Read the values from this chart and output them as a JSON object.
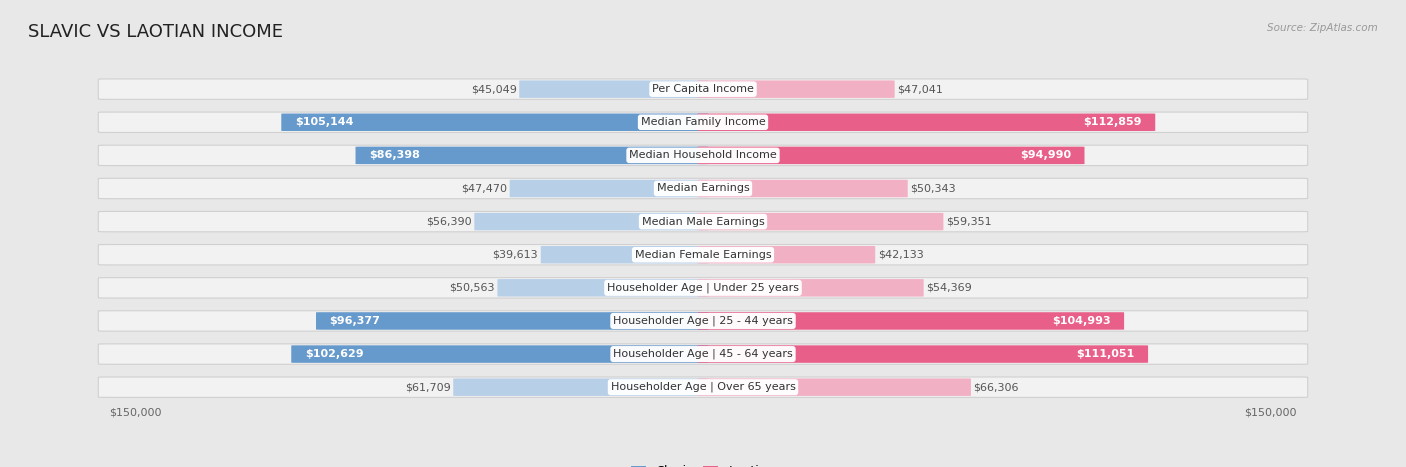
{
  "title": "SLAVIC VS LAOTIAN INCOME",
  "source": "Source: ZipAtlas.com",
  "categories": [
    "Per Capita Income",
    "Median Family Income",
    "Median Household Income",
    "Median Earnings",
    "Median Male Earnings",
    "Median Female Earnings",
    "Householder Age | Under 25 years",
    "Householder Age | 25 - 44 years",
    "Householder Age | 45 - 64 years",
    "Householder Age | Over 65 years"
  ],
  "slavic_values": [
    45049,
    105144,
    86398,
    47470,
    56390,
    39613,
    50563,
    96377,
    102629,
    61709
  ],
  "laotian_values": [
    47041,
    112859,
    94990,
    50343,
    59351,
    42133,
    54369,
    104993,
    111051,
    66306
  ],
  "slavic_labels": [
    "$45,049",
    "$105,144",
    "$86,398",
    "$47,470",
    "$56,390",
    "$39,613",
    "$50,563",
    "$96,377",
    "$102,629",
    "$61,709"
  ],
  "laotian_labels": [
    "$47,041",
    "$112,859",
    "$94,990",
    "$50,343",
    "$59,351",
    "$42,133",
    "$54,369",
    "$104,993",
    "$111,051",
    "$66,306"
  ],
  "slavic_color_light": "#b8cfe8",
  "slavic_color_dark": "#6699cc",
  "laotian_color_light": "#f2b0c4",
  "laotian_color_dark": "#e8608a",
  "max_value": 150000,
  "background_color": "#e8e8e8",
  "row_bg_color": "#f2f2f2",
  "title_fontsize": 13,
  "label_fontsize": 8,
  "category_fontsize": 8,
  "dark_threshold": 70000
}
